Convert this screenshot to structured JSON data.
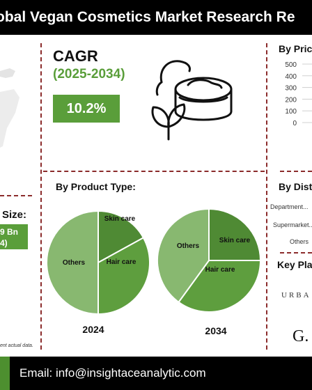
{
  "header": {
    "title": "obal Vegan Cosmetics Market Research Re"
  },
  "left_panel": {
    "size_label": "Size:",
    "size_value_line1": "9 Bn",
    "size_value_line2": "4)",
    "note": "ent actual data."
  },
  "cagr": {
    "label": "CAGR",
    "years": "(2025-2034)",
    "value": "10.2%"
  },
  "product_type": {
    "title": "By Product Type:"
  },
  "price": {
    "title": "By Pric"
  },
  "distribution": {
    "title": "By Dist",
    "items": [
      "Department...",
      "Supermarket...",
      "Others"
    ]
  },
  "key_players": {
    "title": "Key Pla",
    "logo1": "URBA",
    "logo2": "G."
  },
  "footer": {
    "email": "Email: info@insightaceanalytic.com"
  },
  "chart_data": [
    {
      "type": "pie",
      "title": "2024",
      "slices": [
        {
          "label": "Others",
          "value": 50,
          "color": "#88b870"
        },
        {
          "label": "Skin care",
          "value": 17,
          "color": "#4f8a34"
        },
        {
          "label": "Hair care",
          "value": 33,
          "color": "#5e9e3e"
        }
      ]
    },
    {
      "type": "pie",
      "title": "2034",
      "slices": [
        {
          "label": "Skin care",
          "value": 25,
          "color": "#4f8a34"
        },
        {
          "label": "Hair care",
          "value": 35,
          "color": "#5e9e3e"
        },
        {
          "label": "Others",
          "value": 40,
          "color": "#88b870"
        }
      ]
    },
    {
      "type": "bar",
      "title": "By Pric",
      "ylim": [
        0,
        500
      ],
      "yticks": [
        0,
        100,
        200,
        300,
        400,
        500
      ]
    }
  ],
  "colors": {
    "accent_green": "#5a9e3a",
    "divider": "#8b2b2b",
    "title_bg": "#000000"
  }
}
